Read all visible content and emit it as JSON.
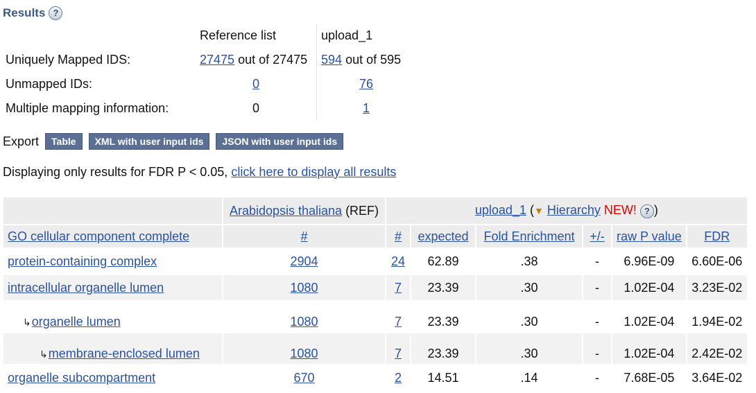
{
  "results": {
    "title": "Results",
    "help": "?"
  },
  "mapping": {
    "col_ref": "Reference list",
    "col_upload": "upload_1",
    "rows": [
      {
        "label": "Uniquely Mapped IDS:",
        "ref_link": "27475",
        "ref_rest": "out of 27475",
        "up_link": "594",
        "up_rest": "out of 595"
      },
      {
        "label": "Unmapped IDs:",
        "ref_link": "0",
        "up_link": "76"
      },
      {
        "label": "Multiple mapping information:",
        "ref_value": "0",
        "up_link": "1"
      }
    ]
  },
  "export": {
    "label": "Export",
    "buttons": [
      "Table",
      "XML with user input ids",
      "JSON with user input ids"
    ]
  },
  "filter": {
    "text": "Displaying only results for FDR P < 0.05,",
    "link": "click here to display all results"
  },
  "table": {
    "organism": "Arabidopsis thaliana",
    "ref_suffix": "(REF)",
    "upload": "upload_1",
    "open_paren": "(",
    "hierarchy_symbol": "▼",
    "hierarchy": "Hierarchy",
    "new": "NEW!",
    "help": "?",
    "close_paren": ")",
    "headers": {
      "go": "GO cellular component complete",
      "ref_count": "#",
      "up_count": "#",
      "expected": "expected",
      "fold": "Fold Enrichment",
      "plusminus": "+/-",
      "raw_p": "raw P value",
      "fdr": "FDR"
    },
    "rows": [
      {
        "term": "protein-containing complex",
        "ref": "2904",
        "count": "24",
        "expected": "62.89",
        "fold": ".38",
        "pm": "-",
        "raw_p": "6.96E-09",
        "fdr": "6.60E-06"
      },
      {
        "term": "intracellular organelle lumen",
        "ref": "1080",
        "count": "7",
        "expected": "23.39",
        "fold": ".30",
        "pm": "-",
        "raw_p": "1.02E-04",
        "fdr": "3.23E-02"
      },
      {
        "term": "organelle lumen",
        "ref": "1080",
        "count": "7",
        "expected": "23.39",
        "fold": ".30",
        "pm": "-",
        "raw_p": "1.02E-04",
        "fdr": "1.94E-02"
      },
      {
        "term": "membrane-enclosed lumen",
        "ref": "1080",
        "count": "7",
        "expected": "23.39",
        "fold": ".30",
        "pm": "-",
        "raw_p": "1.02E-04",
        "fdr": "2.42E-02"
      },
      {
        "term": "organelle subcompartment",
        "ref": "670",
        "count": "2",
        "expected": "14.51",
        "fold": ".14",
        "pm": "-",
        "raw_p": "7.68E-05",
        "fdr": "3.64E-02"
      }
    ]
  }
}
